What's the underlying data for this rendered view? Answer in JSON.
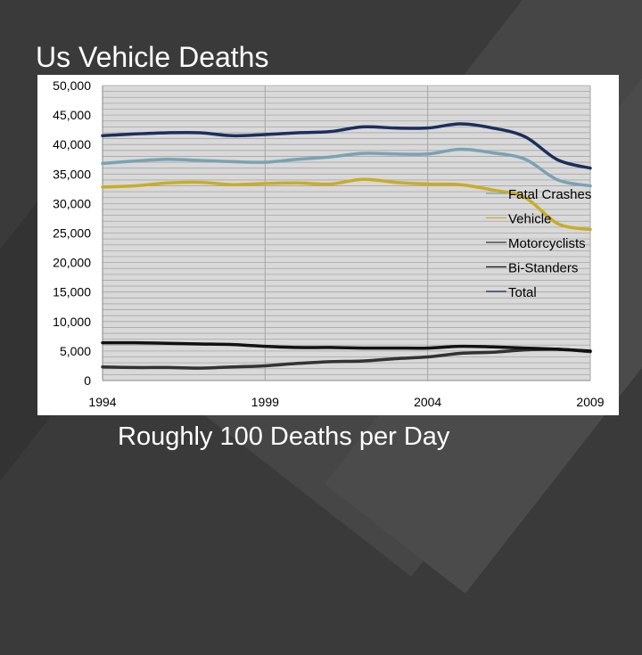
{
  "slide": {
    "title": "Us Vehicle Deaths",
    "subtitle": "Roughly 100 Deaths per Day"
  },
  "chart_data": {
    "type": "line",
    "title": "",
    "xlabel": "",
    "ylabel": "",
    "xlim": [
      1994,
      2009
    ],
    "ylim": [
      0,
      50000
    ],
    "grid": true,
    "legend_position": "right",
    "x_ticks": [
      "1994",
      "1999",
      "2004",
      "2009"
    ],
    "y_ticks": [
      "0",
      "5,000",
      "10,000",
      "15,000",
      "20,000",
      "25,000",
      "30,000",
      "35,000",
      "40,000",
      "45,000",
      "50,000"
    ],
    "x": [
      1994,
      1995,
      1996,
      1997,
      1998,
      1999,
      2000,
      2001,
      2002,
      2003,
      2004,
      2005,
      2006,
      2007,
      2008,
      2009
    ],
    "series": [
      {
        "name": "Fatal Crashes",
        "color": "#7aa2b4",
        "values": [
          36800,
          37200,
          37500,
          37300,
          37100,
          37000,
          37500,
          37900,
          38500,
          38400,
          38400,
          39200,
          38600,
          37500,
          34000,
          33000
        ]
      },
      {
        "name": "Vehicle",
        "color": "#c9ac28",
        "values": [
          32800,
          33000,
          33500,
          33600,
          33200,
          33400,
          33500,
          33300,
          34100,
          33600,
          33300,
          33200,
          32300,
          31000,
          26600,
          25600
        ]
      },
      {
        "name": "Motorcyclists",
        "color": "#333333",
        "values": [
          2300,
          2200,
          2200,
          2100,
          2300,
          2500,
          2900,
          3200,
          3300,
          3700,
          4000,
          4600,
          4800,
          5200,
          5300,
          4900
        ]
      },
      {
        "name": "Bi-Standers",
        "color": "#111111",
        "values": [
          6400,
          6400,
          6300,
          6200,
          6100,
          5800,
          5600,
          5600,
          5500,
          5500,
          5500,
          5800,
          5700,
          5500,
          5300,
          5000
        ]
      },
      {
        "name": "Total",
        "color": "#1b2f5e",
        "values": [
          41500,
          41800,
          42000,
          42000,
          41500,
          41700,
          42000,
          42200,
          43000,
          42800,
          42800,
          43500,
          42800,
          41300,
          37400,
          36000
        ]
      }
    ]
  }
}
